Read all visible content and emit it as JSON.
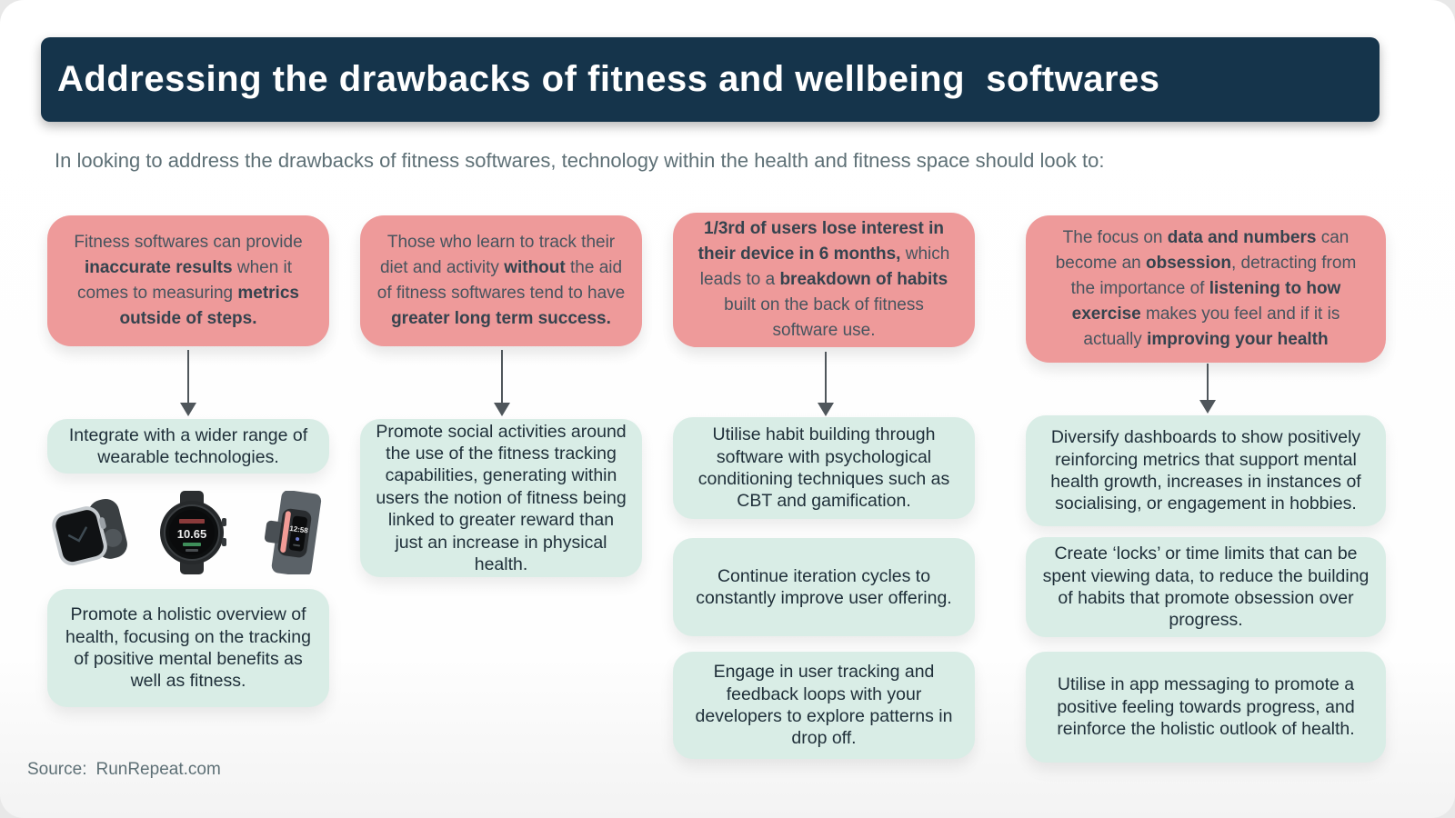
{
  "page": {
    "title": "Addressing the drawbacks of fitness and wellbeing  softwares",
    "subtitle": "In looking to address the drawbacks of fitness softwares, technology within the health and fitness space should look to:",
    "source_label": "Source:",
    "source_value": "RunRepeat.com"
  },
  "colors": {
    "header_bg": "#15344B",
    "drawback_box_bg": "#EE9A9A",
    "solution_box_bg": "#D9EDE6",
    "arrow": "#4F565B",
    "drawback_text": "#47545E",
    "solution_text": "#20303A",
    "subtitle_text": "#5E7076"
  },
  "columns": [
    {
      "drawback_segments": [
        {
          "text": "Fitness softwares can provide ",
          "bold": false
        },
        {
          "text": "inaccurate results",
          "bold": true
        },
        {
          "text": " when it comes to measuring ",
          "bold": false
        },
        {
          "text": "metrics outside of steps.",
          "bold": true
        }
      ],
      "solutions": [
        "Integrate with a wider range of wearable technologies.",
        "Promote a holistic overview of health, focusing on the tracking of positive mental benefits as well as fitness."
      ]
    },
    {
      "drawback_segments": [
        {
          "text": "Those who learn to track their diet and activity ",
          "bold": false
        },
        {
          "text": "without",
          "bold": true
        },
        {
          "text": " the aid of fitness softwares tend to have ",
          "bold": false
        },
        {
          "text": "greater long term success.",
          "bold": true
        }
      ],
      "solutions": [
        "Promote social activities around the use of the fitness tracking capabilities, generating within users the notion of fitness being linked to greater reward than just an increase in physical health."
      ]
    },
    {
      "drawback_segments": [
        {
          "text": "1/3rd of users lose interest in their device in 6 months,",
          "bold": true
        },
        {
          "text": " which leads to a ",
          "bold": false
        },
        {
          "text": "breakdown of habits",
          "bold": true
        },
        {
          "text": " built on the back of fitness software use.",
          "bold": false
        }
      ],
      "solutions": [
        "Utilise habit building through software with psychological conditioning techniques such as CBT and gamification.",
        "Continue iteration cycles to constantly improve user offering.",
        "Engage in user tracking and feedback loops with your developers to explore patterns in drop off."
      ]
    },
    {
      "drawback_segments": [
        {
          "text": "The focus on ",
          "bold": false
        },
        {
          "text": "data and numbers",
          "bold": true
        },
        {
          "text": " can become an ",
          "bold": false
        },
        {
          "text": "obsession",
          "bold": true
        },
        {
          "text": ", detracting from the importance of ",
          "bold": false
        },
        {
          "text": "listening to how exercise",
          "bold": true
        },
        {
          "text": " makes you feel and if it is actually ",
          "bold": false
        },
        {
          "text": "improving your health",
          "bold": true
        }
      ],
      "solutions": [
        "Diversify dashboards to show positively reinforcing metrics that support mental health growth, increases in instances of socialising, or engagement in hobbies.",
        "Create ‘locks’ or time limits that can be spent viewing data, to reduce the building of habits that promote obsession over progress.",
        "Utilise in app messaging to promote a positive feeling towards progress, and reinforce the holistic outlook of health."
      ]
    }
  ],
  "watches": {
    "garmin_value": "10.65",
    "fitbit_time": "12:58"
  }
}
